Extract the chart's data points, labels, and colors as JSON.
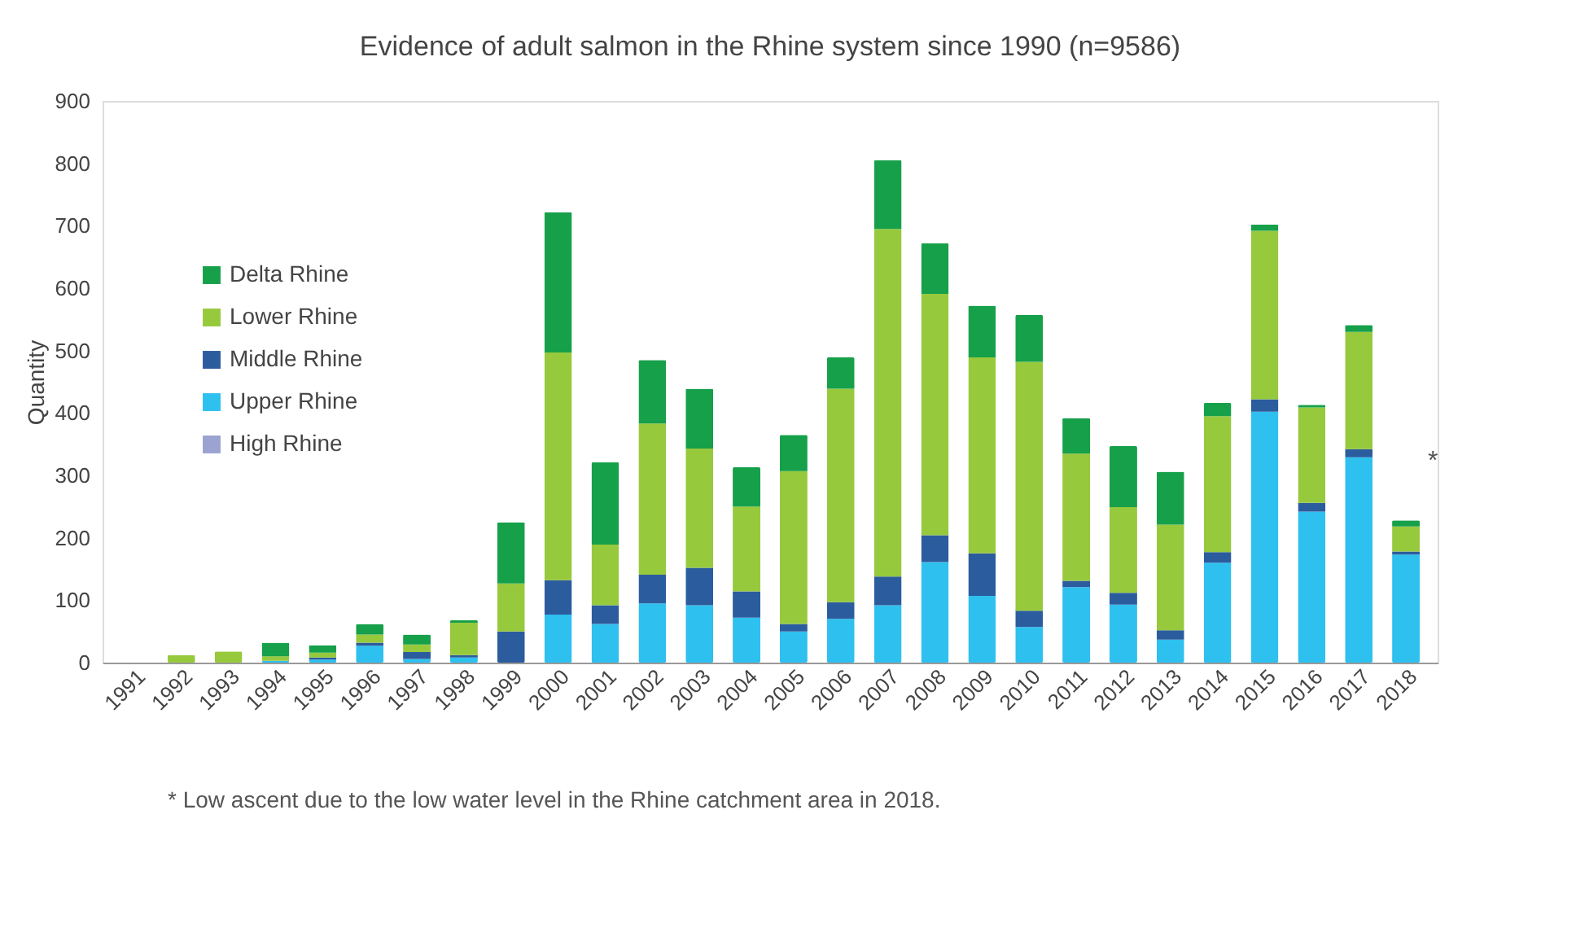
{
  "chart_data": {
    "type": "bar",
    "stacked": true,
    "title": "Evidence of adult salmon in the Rhine system since 1990 (n=9586)",
    "ylabel": "Quantity",
    "categories": [
      "1991",
      "1992",
      "1993",
      "1994",
      "1995",
      "1996",
      "1997",
      "1998",
      "1999",
      "2000",
      "2001",
      "2002",
      "2003",
      "2004",
      "2005",
      "2006",
      "2007",
      "2008",
      "2009",
      "2010",
      "2011",
      "2012",
      "2013",
      "2014",
      "2015",
      "2016",
      "2017",
      "2018"
    ],
    "series": [
      {
        "name": "High Rhine",
        "color": "#9ba3d0",
        "values": [
          0,
          0,
          0,
          0,
          0,
          0,
          0,
          0,
          0,
          0,
          0,
          0,
          0,
          0,
          0,
          0,
          0,
          0,
          0,
          0,
          0,
          0,
          0,
          0,
          0,
          0,
          0,
          0
        ]
      },
      {
        "name": "Upper Rhine",
        "color": "#2ec0ef",
        "values": [
          0,
          0,
          0,
          3,
          5,
          27,
          6,
          8,
          0,
          77,
          62,
          95,
          92,
          72,
          50,
          70,
          92,
          161,
          107,
          57,
          121,
          93,
          37,
          160,
          402,
          242,
          329,
          173
        ]
      },
      {
        "name": "Middle Rhine",
        "color": "#2b5c9e",
        "values": [
          0,
          0,
          0,
          0,
          3,
          5,
          11,
          4,
          50,
          55,
          30,
          46,
          60,
          42,
          12,
          27,
          46,
          43,
          68,
          26,
          10,
          19,
          15,
          17,
          20,
          14,
          13,
          5
        ]
      },
      {
        "name": "Lower Rhine",
        "color": "#97c93d",
        "values": [
          0,
          12,
          18,
          7,
          8,
          13,
          12,
          52,
          77,
          365,
          97,
          242,
          191,
          136,
          245,
          342,
          557,
          387,
          314,
          399,
          204,
          137,
          169,
          218,
          270,
          153,
          188,
          40
        ]
      },
      {
        "name": "Delta Rhine",
        "color": "#16a04a",
        "values": [
          0,
          0,
          0,
          22,
          12,
          17,
          16,
          4,
          98,
          225,
          132,
          102,
          96,
          63,
          58,
          50,
          110,
          81,
          83,
          75,
          57,
          98,
          85,
          21,
          10,
          4,
          11,
          10
        ]
      }
    ],
    "ylim": [
      0,
      900
    ],
    "yticks": [
      0,
      100,
      200,
      300,
      400,
      500,
      600,
      700,
      800,
      900
    ],
    "grid": false,
    "legend": "left",
    "annotations": [
      "*",
      "* Low ascent due to the low water level in the Rhine catchment area in 2018."
    ]
  }
}
